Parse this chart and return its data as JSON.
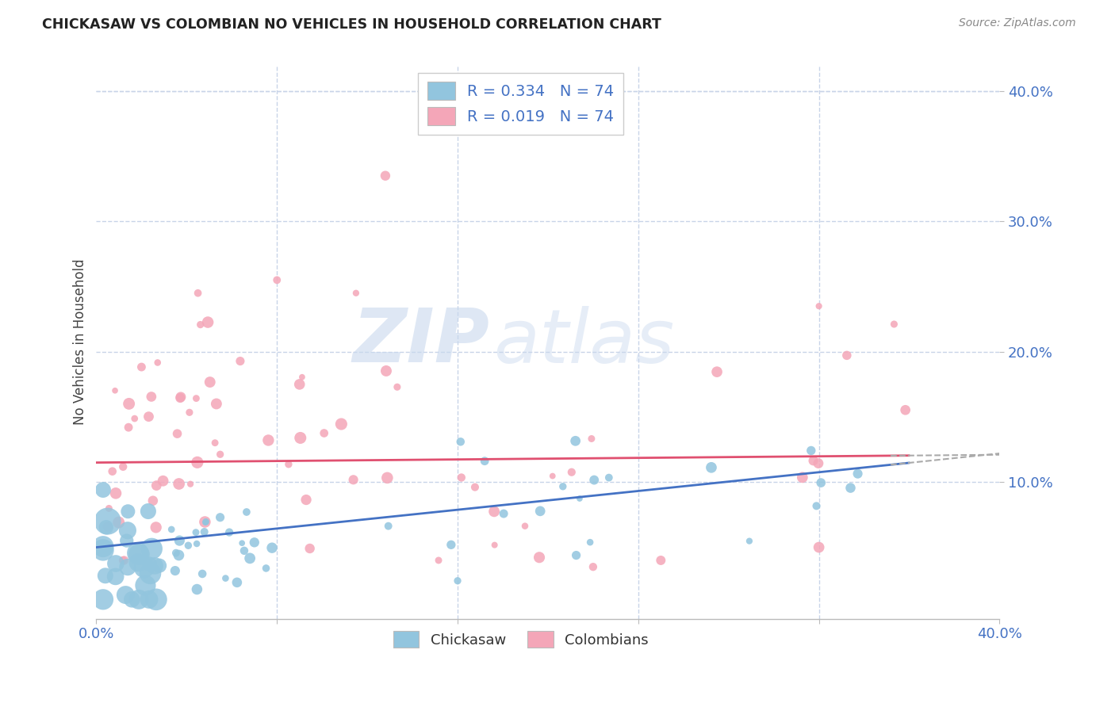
{
  "title": "CHICKASAW VS COLOMBIAN NO VEHICLES IN HOUSEHOLD CORRELATION CHART",
  "source": "Source: ZipAtlas.com",
  "ylabel": "No Vehicles in Household",
  "color_blue": "#92c5de",
  "color_pink": "#f4a6b8",
  "color_blue_dark": "#4472c4",
  "color_pink_line": "#e05070",
  "color_grey_dash": "#aaaaaa",
  "bg_color": "#ffffff",
  "grid_color": "#c8d4e8",
  "xlim": [
    0.0,
    0.4
  ],
  "ylim": [
    -0.005,
    0.42
  ],
  "ytick_vals": [
    0.1,
    0.2,
    0.3,
    0.4
  ],
  "ytick_labels": [
    "10.0%",
    "20.0%",
    "30.0%",
    "40.0%"
  ],
  "xtick_vals": [
    0.0,
    0.08,
    0.16,
    0.24,
    0.32,
    0.4
  ],
  "watermark_zip": "ZIP",
  "watermark_atlas": "atlas",
  "legend_items": [
    {
      "label": "R = 0.334   N = 74",
      "color": "#92c5de"
    },
    {
      "label": "R = 0.019   N = 74",
      "color": "#f4a6b8"
    }
  ],
  "bottom_legend": [
    {
      "label": "Chickasaw",
      "color": "#92c5de"
    },
    {
      "label": "Colombians",
      "color": "#f4a6b8"
    }
  ]
}
